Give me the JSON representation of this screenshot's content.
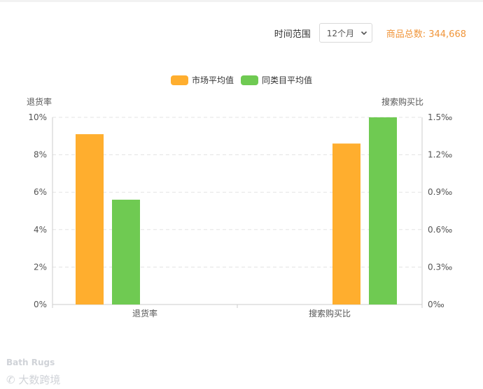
{
  "toolbar": {
    "range_label": "时间范围",
    "range_value": "12个月",
    "total_label": "商品总数: 344,668"
  },
  "watermark": {
    "category": "Bath Rugs",
    "brand": "大数跨境"
  },
  "colors": {
    "market": "#ffae2e",
    "same_category": "#6fca52",
    "grid": "#e3e3e3",
    "total_text": "#f0953a"
  },
  "chart_data": {
    "type": "bar",
    "categories": [
      "退货率",
      "搜索购买比"
    ],
    "legend_position": "top-center",
    "grid": true,
    "series": [
      {
        "name": "市场平均值",
        "values": [
          9.1,
          1.29
        ]
      },
      {
        "name": "同类目平均值",
        "values": [
          5.6,
          1.5
        ]
      }
    ],
    "left_axis": {
      "label": "退货率",
      "ticks": [
        "0%",
        "2%",
        "4%",
        "6%",
        "8%",
        "10%"
      ],
      "ylim": [
        0,
        10
      ],
      "unit": "%"
    },
    "right_axis": {
      "label": "搜索购买比",
      "ticks": [
        "0‰",
        "0.3‰",
        "0.6‰",
        "0.9‰",
        "1.2‰",
        "1.5‰"
      ],
      "ylim": [
        0,
        1.5
      ],
      "unit": "‰"
    }
  }
}
